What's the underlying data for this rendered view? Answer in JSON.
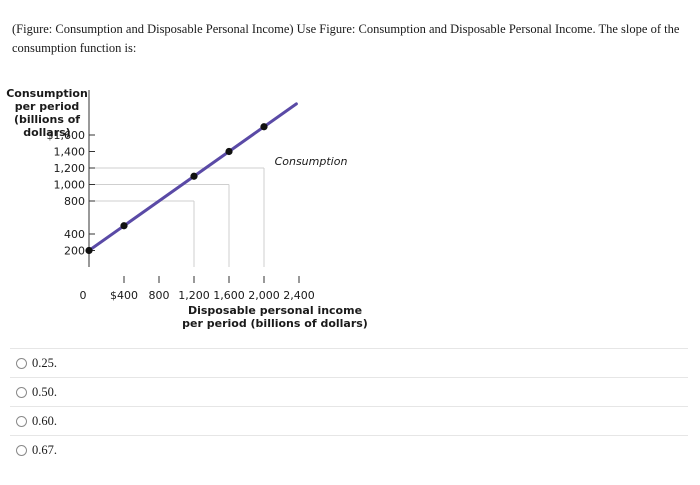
{
  "question": {
    "text": "(Figure: Consumption and Disposable Personal Income) Use Figure: Consumption and Disposable Personal Income. The slope of the consumption function is:"
  },
  "chart_data": {
    "type": "line",
    "ylabel_lines": [
      "Consumption",
      "per period",
      "(billions of",
      "dollars)"
    ],
    "xlabel_lines": [
      "Disposable personal income",
      "per period (billions of dollars)"
    ],
    "origin_label": "0",
    "x_ticks": [
      {
        "value": 400,
        "label": "$400"
      },
      {
        "value": 800,
        "label": "800"
      },
      {
        "value": 1200,
        "label": "1,200"
      },
      {
        "value": 1600,
        "label": "1,600"
      },
      {
        "value": 2000,
        "label": "2,000"
      },
      {
        "value": 2400,
        "label": "2,400"
      }
    ],
    "y_ticks": [
      {
        "value": 200,
        "label": "200"
      },
      {
        "value": 400,
        "label": "400"
      },
      {
        "value": 800,
        "label": "800"
      },
      {
        "value": 1000,
        "label": "1,000"
      },
      {
        "value": 1200,
        "label": "1,200"
      },
      {
        "value": 1400,
        "label": "1,400"
      },
      {
        "value": 1600,
        "label": "$1,600"
      }
    ],
    "xlim": [
      0,
      2400
    ],
    "ylim": [
      0,
      1600
    ],
    "series": [
      {
        "name": "Consumption",
        "color": "#5a4aa6",
        "line_x": [
          0,
          2000
        ],
        "line_y": [
          200,
          1700
        ],
        "points": [
          {
            "x": 0,
            "y": 200
          },
          {
            "x": 400,
            "y": 500
          },
          {
            "x": 1200,
            "y": 1100
          },
          {
            "x": 1600,
            "y": 1400
          },
          {
            "x": 2000,
            "y": 1700
          }
        ]
      }
    ],
    "reference_lines": [
      {
        "x": 1200,
        "y": 800
      },
      {
        "x": 1600,
        "y": 1000
      },
      {
        "x": 2000,
        "y": 1200
      }
    ],
    "grid": false
  },
  "options": [
    {
      "label": "0.25."
    },
    {
      "label": "0.50."
    },
    {
      "label": "0.60."
    },
    {
      "label": "0.67."
    }
  ]
}
